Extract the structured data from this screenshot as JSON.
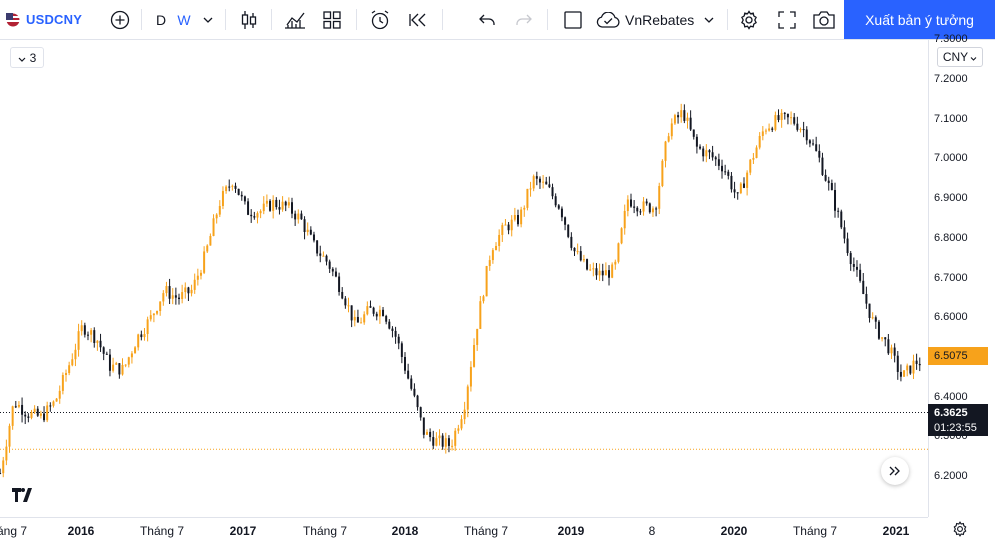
{
  "toolbar": {
    "symbol": "USDCNY",
    "resolution_d": "D",
    "resolution_w": "W",
    "broker": "VnRebates",
    "publish_label": "Xuất bản ý tưởng"
  },
  "legend": {
    "collapsed_count": "3"
  },
  "currency": "CNY",
  "price_axis": {
    "labels": [
      "7.3000",
      "7.2000",
      "7.1000",
      "7.0000",
      "6.9000",
      "6.8000",
      "6.7000",
      "6.6000",
      "6.4000",
      "6.3000",
      "6.2000"
    ],
    "last_price": "6.5075",
    "crosshair_price": "6.3625",
    "countdown": "01:23:55"
  },
  "time_axis": {
    "labels": [
      "áng 7",
      "2016",
      "Tháng 7",
      "2017",
      "Tháng 7",
      "2018",
      "Tháng 7",
      "2019",
      "8",
      "2020",
      "Tháng 7",
      "2021"
    ]
  },
  "colors": {
    "up": "#f7a21b",
    "down": "#131722",
    "accent": "#2962ff"
  },
  "chart_data": {
    "type": "candlestick",
    "symbol": "USDCNY",
    "interval": "W",
    "ylim": [
      6.2,
      7.3
    ],
    "x_labels": [
      "2016",
      "2017",
      "2018",
      "2019",
      "2020",
      "2021"
    ],
    "close_path": [
      {
        "date": "2015-07",
        "value": 6.21
      },
      {
        "date": "2015-08",
        "value": 6.39
      },
      {
        "date": "2015-09",
        "value": 6.36
      },
      {
        "date": "2015-10",
        "value": 6.35
      },
      {
        "date": "2015-11",
        "value": 6.39
      },
      {
        "date": "2015-12",
        "value": 6.48
      },
      {
        "date": "2016-01",
        "value": 6.58
      },
      {
        "date": "2016-02",
        "value": 6.55
      },
      {
        "date": "2016-03",
        "value": 6.48
      },
      {
        "date": "2016-04",
        "value": 6.47
      },
      {
        "date": "2016-05",
        "value": 6.55
      },
      {
        "date": "2016-06",
        "value": 6.6
      },
      {
        "date": "2016-07",
        "value": 6.67
      },
      {
        "date": "2016-08",
        "value": 6.65
      },
      {
        "date": "2016-09",
        "value": 6.67
      },
      {
        "date": "2016-10",
        "value": 6.76
      },
      {
        "date": "2016-11",
        "value": 6.89
      },
      {
        "date": "2016-12",
        "value": 6.95
      },
      {
        "date": "2017-01",
        "value": 6.87
      },
      {
        "date": "2017-02",
        "value": 6.87
      },
      {
        "date": "2017-03",
        "value": 6.89
      },
      {
        "date": "2017-04",
        "value": 6.88
      },
      {
        "date": "2017-05",
        "value": 6.85
      },
      {
        "date": "2017-06",
        "value": 6.78
      },
      {
        "date": "2017-07",
        "value": 6.74
      },
      {
        "date": "2017-08",
        "value": 6.67
      },
      {
        "date": "2017-09",
        "value": 6.58
      },
      {
        "date": "2017-10",
        "value": 6.62
      },
      {
        "date": "2017-11",
        "value": 6.62
      },
      {
        "date": "2017-12",
        "value": 6.55
      },
      {
        "date": "2018-01",
        "value": 6.43
      },
      {
        "date": "2018-02",
        "value": 6.31
      },
      {
        "date": "2018-03",
        "value": 6.29
      },
      {
        "date": "2018-04",
        "value": 6.28
      },
      {
        "date": "2018-05",
        "value": 6.38
      },
      {
        "date": "2018-06",
        "value": 6.6
      },
      {
        "date": "2018-07",
        "value": 6.78
      },
      {
        "date": "2018-08",
        "value": 6.83
      },
      {
        "date": "2018-09",
        "value": 6.85
      },
      {
        "date": "2018-10",
        "value": 6.95
      },
      {
        "date": "2018-11",
        "value": 6.93
      },
      {
        "date": "2018-12",
        "value": 6.88
      },
      {
        "date": "2019-01",
        "value": 6.77
      },
      {
        "date": "2019-02",
        "value": 6.72
      },
      {
        "date": "2019-03",
        "value": 6.71
      },
      {
        "date": "2019-04",
        "value": 6.72
      },
      {
        "date": "2019-05",
        "value": 6.9
      },
      {
        "date": "2019-06",
        "value": 6.88
      },
      {
        "date": "2019-07",
        "value": 6.88
      },
      {
        "date": "2019-08",
        "value": 7.08
      },
      {
        "date": "2019-09",
        "value": 7.12
      },
      {
        "date": "2019-10",
        "value": 7.03
      },
      {
        "date": "2019-11",
        "value": 7.01
      },
      {
        "date": "2019-12",
        "value": 6.98
      },
      {
        "date": "2020-01",
        "value": 6.9
      },
      {
        "date": "2020-02",
        "value": 7.0
      },
      {
        "date": "2020-03",
        "value": 7.08
      },
      {
        "date": "2020-04",
        "value": 7.1
      },
      {
        "date": "2020-05",
        "value": 7.1
      },
      {
        "date": "2020-06",
        "value": 7.07
      },
      {
        "date": "2020-07",
        "value": 7.0
      },
      {
        "date": "2020-08",
        "value": 6.9
      },
      {
        "date": "2020-09",
        "value": 6.78
      },
      {
        "date": "2020-10",
        "value": 6.68
      },
      {
        "date": "2020-11",
        "value": 6.58
      },
      {
        "date": "2020-12",
        "value": 6.53
      },
      {
        "date": "2021-01",
        "value": 6.45
      },
      {
        "date": "2021-02",
        "value": 6.49
      }
    ],
    "horizontal_lines": [
      {
        "value": 6.3625,
        "style": "dotted",
        "color": "#131722"
      },
      {
        "value": 6.27,
        "style": "dotted",
        "color": "#f7a21b"
      }
    ]
  }
}
